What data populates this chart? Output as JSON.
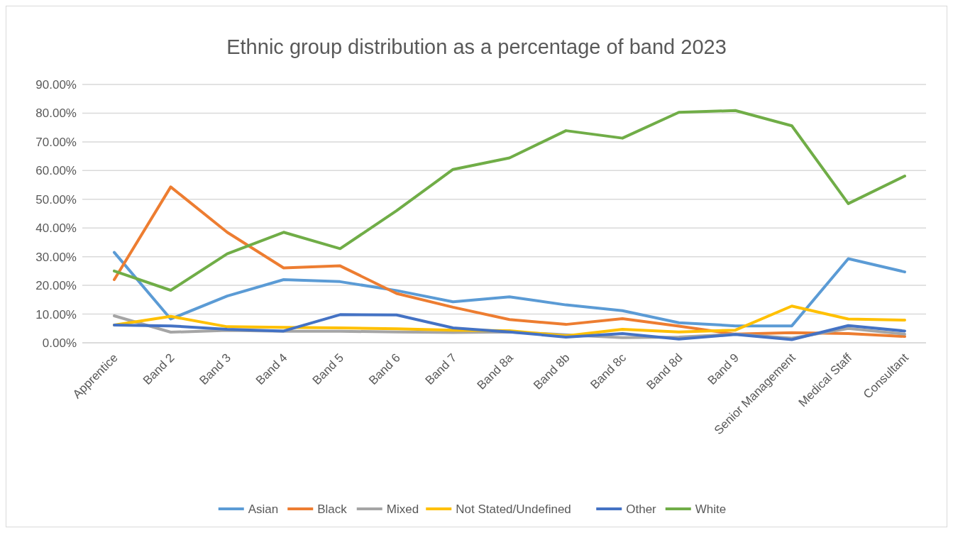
{
  "chart_data": {
    "type": "line",
    "title": "Ethnic group distribution as a percentage of band 2023",
    "categories": [
      "Apprentice",
      "Band 2",
      "Band 3",
      "Band 4",
      "Band 5",
      "Band 6",
      "Band 7",
      "Band 8a",
      "Band 8b",
      "Band 8c",
      "Band 8d",
      "Band 9",
      "Senior Management",
      "Medical Staff",
      "Consultant"
    ],
    "series": [
      {
        "name": "Asian",
        "color": "#5b9bd5",
        "values": [
          31.5,
          8.3,
          16.3,
          22,
          21.3,
          18.2,
          14.3,
          16,
          13.2,
          11.2,
          7,
          5.9,
          5.9,
          29.3,
          24.7
        ]
      },
      {
        "name": "Black",
        "color": "#ed7d31",
        "values": [
          22,
          54.3,
          38.5,
          26.1,
          26.8,
          17.2,
          12.4,
          8.1,
          6.4,
          8.4,
          5.8,
          3,
          3.5,
          3.2,
          2.2
        ]
      },
      {
        "name": "Mixed",
        "color": "#a5a5a5",
        "values": [
          9.4,
          3.7,
          4.3,
          4,
          4,
          3.8,
          3.6,
          3.8,
          2.8,
          1.8,
          2,
          3,
          1.6,
          5,
          3
        ]
      },
      {
        "name": "Not Stated/Undefined",
        "color": "#ffc000",
        "values": [
          6.2,
          9.2,
          5.6,
          5.4,
          5.2,
          4.9,
          4.4,
          4.2,
          2.4,
          4.7,
          3.8,
          4.4,
          12.8,
          8.3,
          7.9
        ]
      },
      {
        "name": "Other",
        "color": "#4472c4",
        "values": [
          6.2,
          5.9,
          4.7,
          4.1,
          9.8,
          9.7,
          5.2,
          3.8,
          2,
          3.2,
          1.3,
          2.9,
          1.1,
          6,
          4.1
        ]
      },
      {
        "name": "White",
        "color": "#70ad47",
        "values": [
          25,
          18.3,
          31,
          38.5,
          32.8,
          46,
          60.4,
          64.4,
          73.9,
          71.3,
          80.3,
          80.9,
          75.6,
          48.5,
          58.1
        ]
      }
    ],
    "ylim": [
      0,
      90
    ],
    "yticks": [
      {
        "value": 0,
        "label": "0.00%"
      },
      {
        "value": 10,
        "label": "10.00%"
      },
      {
        "value": 20,
        "label": "20.00%"
      },
      {
        "value": 30,
        "label": "30.00%"
      },
      {
        "value": 40,
        "label": "40.00%"
      },
      {
        "value": 50,
        "label": "50.00%"
      },
      {
        "value": 60,
        "label": "60.00%"
      },
      {
        "value": 70,
        "label": "70.00%"
      },
      {
        "value": 80,
        "label": "80.00%"
      },
      {
        "value": 90,
        "label": "90.00%"
      }
    ],
    "grid": "y",
    "legend": "bottom",
    "marker": "none",
    "line_style": "solid"
  }
}
